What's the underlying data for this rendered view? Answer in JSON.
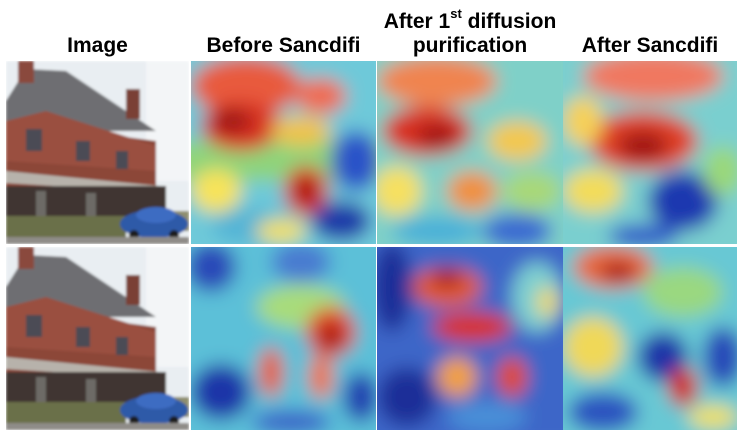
{
  "headers": {
    "image": "Image",
    "before": "Before Sancdifi",
    "after_first_line1_pre": "After 1",
    "after_first_sup": "st",
    "after_first_line1_post": " diffusion",
    "after_first_line2": "purification",
    "after": "After Sancdifi"
  }
}
